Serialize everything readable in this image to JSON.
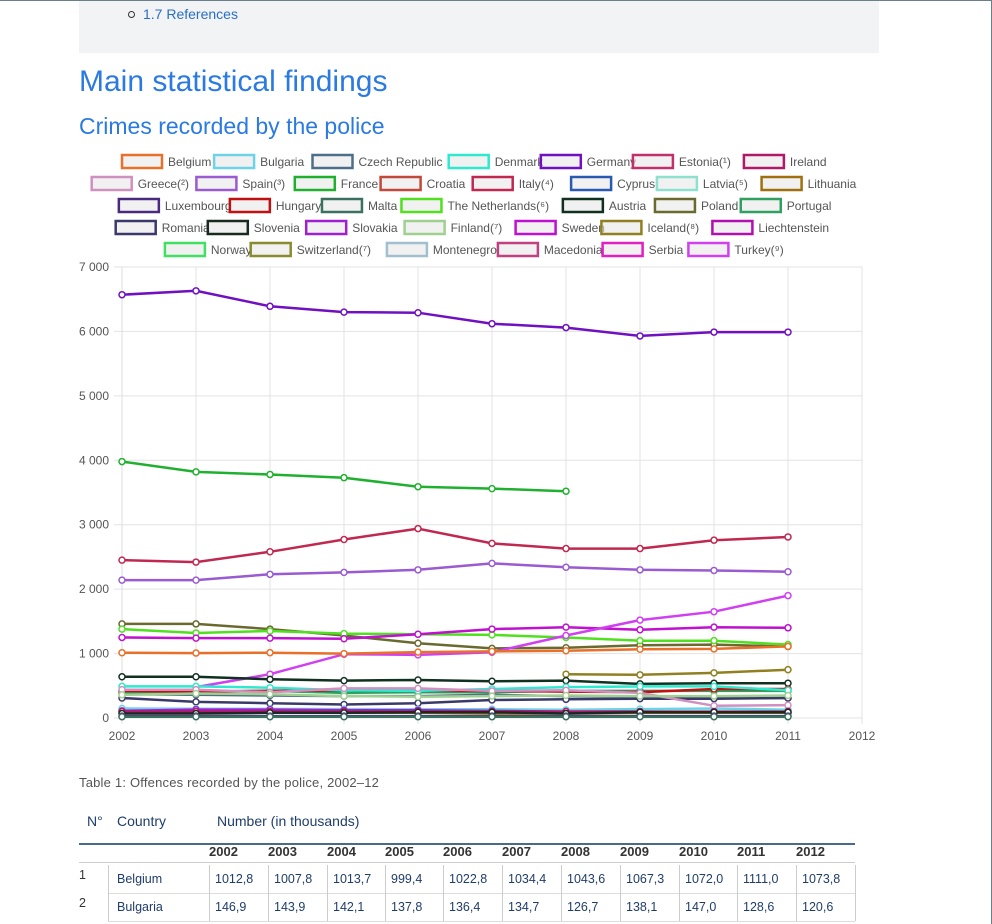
{
  "toc": {
    "item": "1.7 References"
  },
  "headings": {
    "main": "Main statistical findings",
    "sub": "Crimes recorded by the police"
  },
  "legend": [
    {
      "name": "Belgium",
      "color": "#e8702a"
    },
    {
      "name": "Bulgaria",
      "color": "#6fd3e8"
    },
    {
      "name": "Czech Republic",
      "color": "#4c6e8a"
    },
    {
      "name": "Denmark",
      "color": "#2fe8d0"
    },
    {
      "name": "Germany",
      "color": "#7010c0"
    },
    {
      "name": "Estonia(¹)",
      "color": "#c0306a"
    },
    {
      "name": "Ireland",
      "color": "#b01868"
    },
    {
      "name": "Greece(²)",
      "color": "#d090c0"
    },
    {
      "name": "Spain(³)",
      "color": "#9a5ad0"
    },
    {
      "name": "France",
      "color": "#20b030"
    },
    {
      "name": "Croatia",
      "color": "#c04a3a"
    },
    {
      "name": "Italy(⁴)",
      "color": "#c02850"
    },
    {
      "name": "Cyprus",
      "color": "#2a5ab0"
    },
    {
      "name": "Latvia(⁵)",
      "color": "#90e0d0"
    },
    {
      "name": "Lithuania",
      "color": "#a07010"
    },
    {
      "name": "Luxembourg",
      "color": "#4a2a80"
    },
    {
      "name": "Hungary",
      "color": "#c01010"
    },
    {
      "name": "Malta",
      "color": "#3a7060"
    },
    {
      "name": "The Netherlands(⁶)",
      "color": "#50e020"
    },
    {
      "name": "Austria",
      "color": "#103020"
    },
    {
      "name": "Poland",
      "color": "#6a6a30"
    },
    {
      "name": "Portugal",
      "color": "#30a060"
    },
    {
      "name": "Romania",
      "color": "#3a3a6a"
    },
    {
      "name": "Slovenia",
      "color": "#1a2a20"
    },
    {
      "name": "Slovakia",
      "color": "#a020d0"
    },
    {
      "name": "Finland(⁷)",
      "color": "#a0d090"
    },
    {
      "name": "Sweden",
      "color": "#c010d0"
    },
    {
      "name": "Iceland(⁸)",
      "color": "#908020"
    },
    {
      "name": "Liechtenstein",
      "color": "#b010b0"
    },
    {
      "name": "Norway",
      "color": "#40e060"
    },
    {
      "name": "Switzerland(⁷)",
      "color": "#8a8a30"
    },
    {
      "name": "Montenegro",
      "color": "#a0c0d0"
    },
    {
      "name": "Macedonia",
      "color": "#c04080"
    },
    {
      "name": "Serbia",
      "color": "#e020c0"
    },
    {
      "name": "Turkey(⁹)",
      "color": "#d040f0"
    }
  ],
  "chart_data": {
    "type": "line",
    "x": [
      2002,
      2003,
      2004,
      2005,
      2006,
      2007,
      2008,
      2009,
      2010,
      2011
    ],
    "xlim": [
      2002,
      2012
    ],
    "ylim": [
      0,
      7000
    ],
    "yticks": [
      "0",
      "1 000",
      "2 000",
      "3 000",
      "4 000",
      "5 000",
      "6 000",
      "7 000"
    ],
    "xticks": [
      "2002",
      "2003",
      "2004",
      "2005",
      "2006",
      "2007",
      "2008",
      "2009",
      "2010",
      "2011",
      "2012"
    ],
    "grid": true,
    "series": [
      {
        "name": "Germany",
        "color": "#7010c0",
        "values": [
          6570,
          6630,
          6390,
          6300,
          6290,
          6120,
          6060,
          5930,
          5990,
          5990
        ]
      },
      {
        "name": "France",
        "color": "#20b030",
        "values": [
          3980,
          3820,
          3780,
          3730,
          3590,
          3560,
          3520,
          null,
          null,
          null
        ]
      },
      {
        "name": "Italy(⁴)",
        "color": "#c02850",
        "values": [
          2450,
          2420,
          2580,
          2770,
          2940,
          2710,
          2630,
          2630,
          2760,
          2810
        ]
      },
      {
        "name": "Spain(³)",
        "color": "#9a5ad0",
        "values": [
          2140,
          2140,
          2230,
          2260,
          2300,
          2400,
          2340,
          2300,
          2290,
          2270
        ]
      },
      {
        "name": "Poland",
        "color": "#6a6a30",
        "values": [
          1460,
          1460,
          1380,
          1280,
          1160,
          1080,
          1090,
          1130,
          1140,
          1110
        ]
      },
      {
        "name": "The Netherlands(⁶)",
        "color": "#50e020",
        "values": [
          1380,
          1320,
          1350,
          1310,
          1300,
          1290,
          1250,
          1200,
          1200,
          1140
        ]
      },
      {
        "name": "Sweden",
        "color": "#c010d0",
        "values": [
          1250,
          1240,
          1240,
          1230,
          1300,
          1380,
          1410,
          1370,
          1410,
          1400
        ]
      },
      {
        "name": "Turkey(⁹)",
        "color": "#d040f0",
        "values": [
          null,
          480,
          680,
          990,
          980,
          1020,
          1280,
          1520,
          1650,
          1900
        ]
      },
      {
        "name": "Belgium",
        "color": "#e8702a",
        "values": [
          1013,
          1008,
          1014,
          999,
          1023,
          1034,
          1044,
          1067,
          1072,
          1111
        ]
      },
      {
        "name": "Iceland(⁸)",
        "color": "#908020",
        "values": [
          null,
          null,
          null,
          null,
          null,
          null,
          680,
          670,
          700,
          750
        ]
      },
      {
        "name": "Austria",
        "color": "#103020",
        "values": [
          640,
          640,
          600,
          580,
          590,
          570,
          580,
          530,
          540,
          540
        ]
      },
      {
        "name": "Czech Republic",
        "color": "#4c6e8a",
        "values": [
          370,
          360,
          350,
          340,
          340,
          360,
          340,
          330,
          310,
          310
        ]
      },
      {
        "name": "Portugal",
        "color": "#30a060",
        "values": [
          390,
          410,
          420,
          390,
          400,
          400,
          420,
          420,
          420,
          420
        ]
      },
      {
        "name": "Hungary",
        "color": "#c01010",
        "values": [
          420,
          410,
          420,
          430,
          420,
          420,
          410,
          400,
          450,
          450
        ]
      },
      {
        "name": "Denmark",
        "color": "#2fe8d0",
        "values": [
          490,
          490,
          470,
          430,
          420,
          450,
          480,
          490,
          490,
          430
        ]
      },
      {
        "name": "Romania",
        "color": "#3a3a6a",
        "values": [
          310,
          250,
          230,
          210,
          230,
          280,
          290,
          300,
          300,
          310
        ]
      },
      {
        "name": "Bulgaria",
        "color": "#6fd3e8",
        "values": [
          147,
          144,
          142,
          138,
          136,
          135,
          127,
          138,
          147,
          129
        ]
      },
      {
        "name": "Greece(²)",
        "color": "#d090c0",
        "values": [
          440,
          440,
          400,
          460,
          460,
          420,
          430,
          390,
          190,
          200
        ]
      },
      {
        "name": "Finland(⁷)",
        "color": "#a0d090",
        "values": [
          360,
          380,
          370,
          340,
          330,
          340,
          350,
          340,
          340,
          350
        ]
      },
      {
        "name": "Slovakia",
        "color": "#a020d0",
        "values": [
          110,
          130,
          130,
          120,
          120,
          110,
          100,
          100,
          90,
          90
        ]
      },
      {
        "name": "Lithuania",
        "color": "#a07010",
        "values": [
          80,
          80,
          80,
          80,
          80,
          70,
          70,
          80,
          80,
          80
        ]
      },
      {
        "name": "Ireland",
        "color": "#b01868",
        "values": [
          100,
          100,
          100,
          100,
          100,
          100,
          100,
          100,
          100,
          100
        ]
      },
      {
        "name": "Slovenia",
        "color": "#1a2a20",
        "values": [
          70,
          70,
          80,
          80,
          90,
          90,
          70,
          90,
          90,
          90
        ]
      },
      {
        "name": "Luxembourg",
        "color": "#4a2a80",
        "values": [
          30,
          30,
          30,
          30,
          30,
          30,
          30,
          30,
          30,
          30
        ]
      },
      {
        "name": "Malta",
        "color": "#3a7060",
        "values": [
          20,
          20,
          20,
          20,
          20,
          20,
          20,
          20,
          20,
          20
        ]
      }
    ]
  },
  "table": {
    "caption": "Table 1: Offences recorded by the police, 2002–12",
    "col_no": "N°",
    "col_country": "Country",
    "col_number": "Number (in thousands)",
    "years": [
      "2002",
      "2003",
      "2004",
      "2005",
      "2006",
      "2007",
      "2008",
      "2009",
      "2010",
      "2011",
      "2012"
    ],
    "rows": [
      {
        "n": "1",
        "country": "Belgium",
        "vals": [
          "1012,8",
          "1007,8",
          "1013,7",
          "999,4",
          "1022,8",
          "1034,4",
          "1043,6",
          "1067,3",
          "1072,0",
          "1111,0",
          "1073,8"
        ]
      },
      {
        "n": "2",
        "country": "Bulgaria",
        "vals": [
          "146,9",
          "143,9",
          "142,1",
          "137,8",
          "136,4",
          "134,7",
          "126,7",
          "138,1",
          "147,0",
          "128,6",
          "120,6"
        ]
      }
    ]
  }
}
